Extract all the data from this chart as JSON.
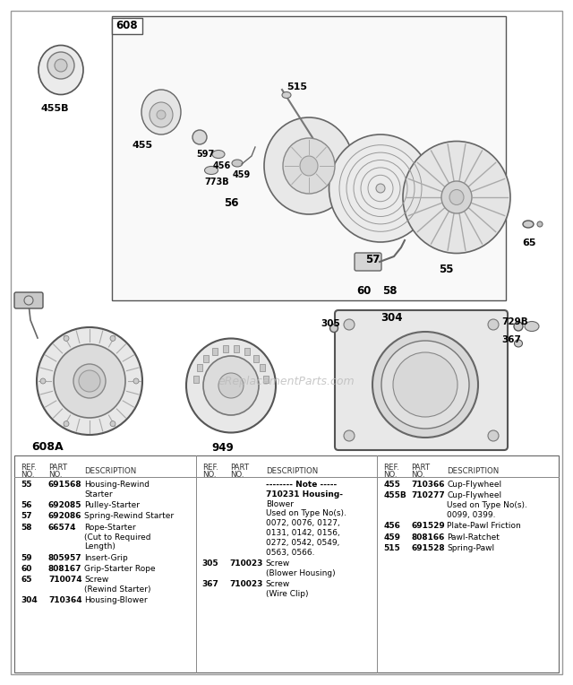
{
  "bg_color": "#ffffff",
  "watermark": "eReplacementParts.com",
  "col1_parts": [
    {
      "ref": "55",
      "part": "691568",
      "desc": "Housing-Rewind\nStarter"
    },
    {
      "ref": "56",
      "part": "692085",
      "desc": "Pulley-Starter"
    },
    {
      "ref": "57",
      "part": "692086",
      "desc": "Spring-Rewind Starter"
    },
    {
      "ref": "58",
      "part": "66574",
      "desc": "Rope-Starter\n(Cut to Required\nLength)"
    },
    {
      "ref": "59",
      "part": "805957",
      "desc": "Insert-Grip"
    },
    {
      "ref": "60",
      "part": "808167",
      "desc": "Grip-Starter Rope"
    },
    {
      "ref": "65",
      "part": "710074",
      "desc": "Screw\n(Rewind Starter)"
    },
    {
      "ref": "304",
      "part": "710364",
      "desc": "Housing-Blower"
    }
  ],
  "col2_parts": [
    {
      "ref": "",
      "part": "",
      "desc": "-------- Note -----\n710231 Housing-\nBlower\nUsed on Type No(s).\n0072, 0076, 0127,\n0131, 0142, 0156,\n0272, 0542, 0549,\n0563, 0566."
    },
    {
      "ref": "305",
      "part": "710023",
      "desc": "Screw\n(Blower Housing)"
    },
    {
      "ref": "367",
      "part": "710023",
      "desc": "Screw\n(Wire Clip)"
    }
  ],
  "col3_parts": [
    {
      "ref": "455",
      "part": "710366",
      "desc": "Cup-Flywheel"
    },
    {
      "ref": "455B",
      "part": "710277",
      "desc": "Cup-Flywheel\nUsed on Type No(s).\n0099, 0399."
    },
    {
      "ref": "456",
      "part": "691529",
      "desc": "Plate-Pawl Friction"
    },
    {
      "ref": "459",
      "part": "808166",
      "desc": "Pawl-Ratchet"
    },
    {
      "ref": "515",
      "part": "691528",
      "desc": "Spring-Pawl"
    }
  ]
}
